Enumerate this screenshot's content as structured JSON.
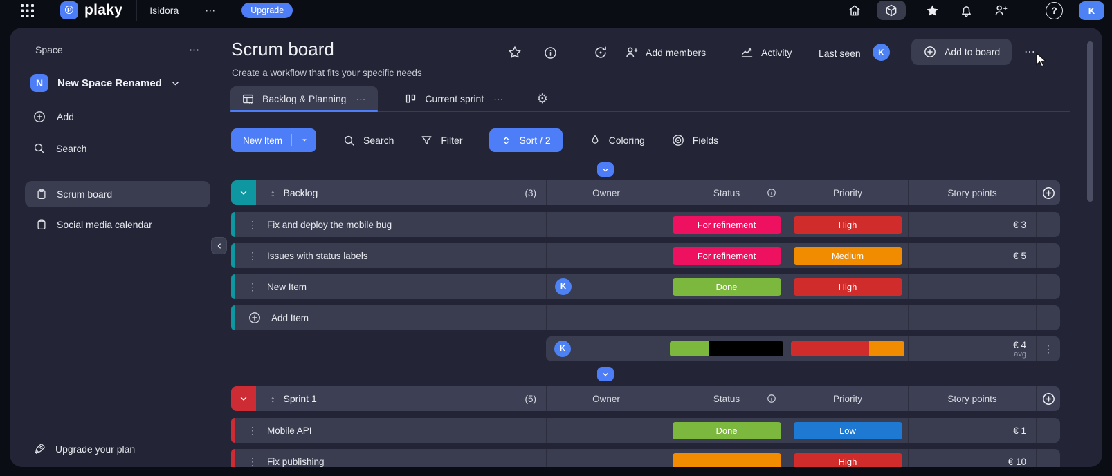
{
  "icons": {
    "ellipsis": "⋯",
    "kebab": "⋮",
    "drag": "↕",
    "gear": "⚙",
    "logo_glyph": "℗"
  },
  "topbar": {
    "brand": "plaky",
    "workspace": "Isidora",
    "upgrade_label": "Upgrade",
    "help_label": "?",
    "avatar_initial": "K"
  },
  "sidebar": {
    "section_label": "Space",
    "space_initial": "N",
    "space_name": "New Space Renamed",
    "add_label": "Add",
    "search_label": "Search",
    "boards": [
      {
        "label": "Scrum board"
      },
      {
        "label": "Social media calendar"
      }
    ],
    "upgrade_plan_label": "Upgrade your plan"
  },
  "header": {
    "title": "Scrum board",
    "subtitle": "Create a workflow that fits your specific needs",
    "add_members_label": "Add members",
    "activity_label": "Activity",
    "last_seen_label": "Last seen",
    "last_seen_avatar": "K",
    "add_to_board_label": "Add to board",
    "tab1_label": "Backlog & Planning",
    "tab2_label": "Current sprint"
  },
  "toolbar": {
    "new_item_label": "New Item",
    "search_label": "Search",
    "filter_label": "Filter",
    "sort_label": "Sort / 2",
    "coloring_label": "Coloring",
    "fields_label": "Fields"
  },
  "columns": {
    "owner": "Owner",
    "status": "Status",
    "priority": "Priority",
    "points": "Story points"
  },
  "accent": "#4d7ef7",
  "groups": {
    "backlog": {
      "name": "Backlog",
      "count": "(3)",
      "color": "#0e96a1",
      "rows": [
        {
          "title": "Fix and deploy the mobile bug",
          "owner": "",
          "status": "For refinement",
          "status_color": "#ed115f",
          "priority": "High",
          "priority_color": "#d02c2c",
          "points": "€ 3"
        },
        {
          "title": "Issues with status labels",
          "owner": "",
          "status": "For refinement",
          "status_color": "#ed115f",
          "priority": "Medium",
          "priority_color": "#f18b00",
          "points": "€ 5"
        },
        {
          "title": "New Item",
          "owner": "K",
          "status": "Done",
          "status_color": "#7cb83e",
          "priority": "High",
          "priority_color": "#d02c2c",
          "points": ""
        }
      ],
      "add_item_label": "Add Item",
      "summary": {
        "owner_avatar": "K",
        "status_bar": [
          {
            "color": "#7cb83e",
            "pct": 34
          },
          {
            "color": "#000000",
            "pct": 66
          }
        ],
        "priority_bar": [
          {
            "color": "#d02c2c",
            "pct": 69
          },
          {
            "color": "#f18b00",
            "pct": 31
          }
        ],
        "points": "€ 4",
        "points_sub": "avg"
      }
    },
    "sprint": {
      "name": "Sprint 1",
      "count": "(5)",
      "color": "#cd2c34",
      "rows": [
        {
          "title": "Mobile API",
          "owner": "",
          "status": "Done",
          "status_color": "#7cb83e",
          "priority": "Low",
          "priority_color": "#1e79d2",
          "points": "€ 1"
        },
        {
          "title": "Fix publishing",
          "owner": "",
          "status": "",
          "status_color": "#f18b00",
          "priority": "High",
          "priority_color": "#d02c2c",
          "points": "€ 10"
        }
      ]
    }
  }
}
